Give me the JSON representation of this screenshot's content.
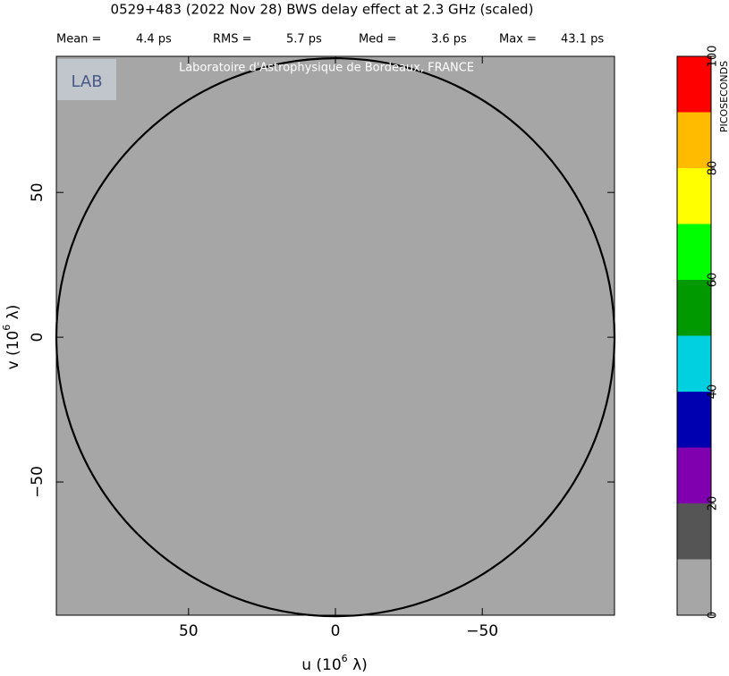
{
  "chart_data": {
    "type": "uv_map",
    "title": "0529+483  (2022 Nov 28)   BWS delay effect at  2.3 GHz (scaled)",
    "stats": [
      {
        "label": "Mean =",
        "value": "4.4 ps"
      },
      {
        "label": "RMS =",
        "value": "5.7 ps"
      },
      {
        "label": "Med =",
        "value": "3.6 ps"
      },
      {
        "label": "Max =",
        "value": "43.1 ps"
      }
    ],
    "watermark": "Laboratoire d'Astrophysique de Bordeaux, FRANCE",
    "logo": "LAB",
    "xlabel": {
      "text": "u  (10",
      "exp": "6",
      "unit": " λ)"
    },
    "ylabel": {
      "text": "v  (10",
      "exp": "6",
      "unit": " λ)"
    },
    "xlim": [
      95,
      -95
    ],
    "ylim": [
      -96,
      97
    ],
    "xticks": [
      50,
      0,
      {
        "value": -50,
        "label": "−50"
      }
    ],
    "yticks": [
      {
        "value": -50,
        "label": "−50"
      },
      0,
      50
    ],
    "background_color": "#a6a6a6",
    "colorbar": {
      "label": "PICOSECONDS",
      "bins": [
        0,
        10,
        20,
        30,
        40,
        50,
        60,
        70,
        80,
        90,
        100
      ],
      "colors": [
        "#a6a6a6",
        "#555555",
        "#8000b0",
        "#0000b0",
        "#00d0e0",
        "#009a00",
        "#00ff00",
        "#ffff00",
        "#ffbb00",
        "#ff0000"
      ],
      "ticks": [
        0,
        20,
        40,
        60,
        80,
        100
      ]
    }
  }
}
